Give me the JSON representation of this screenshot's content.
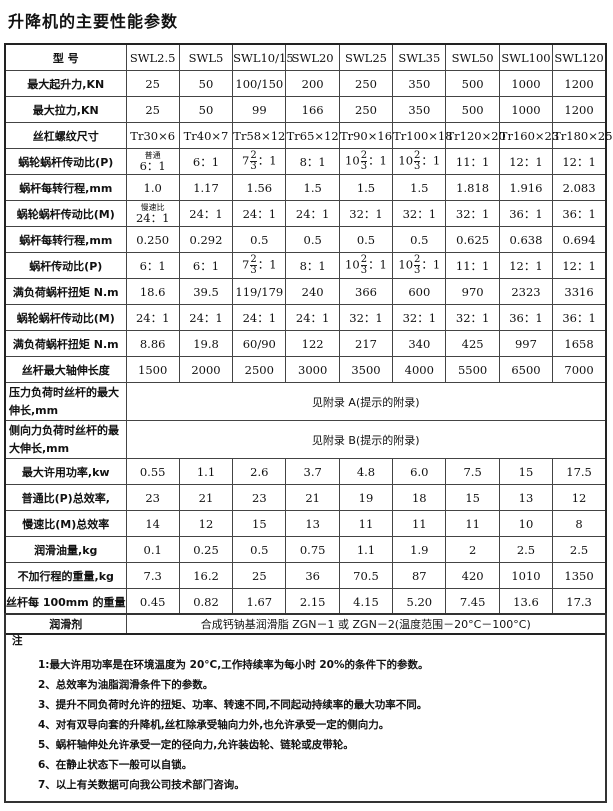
{
  "title": "升降机的主要性能参数",
  "table": {
    "header": [
      "型 号",
      "SWL2.5",
      "SWL5",
      "SWL10/15",
      "SWL20",
      "SWL25",
      "SWL35",
      "SWL50",
      "SWL100",
      "SWL120"
    ],
    "rows": [
      {
        "label": "最大起升力,KN",
        "cells": [
          "25",
          "50",
          "100/150",
          "200",
          "250",
          "350",
          "500",
          "1000",
          "1200"
        ]
      },
      {
        "label": "最大拉力,KN",
        "cells": [
          "25",
          "50",
          "99",
          "166",
          "250",
          "350",
          "500",
          "1000",
          "1200"
        ]
      },
      {
        "label": "丝杠螺纹尺寸",
        "cells": [
          "Tr30×6",
          "Tr40×7",
          "Tr58×12",
          "Tr65×12",
          "Tr90×16",
          "Tr100×18",
          "Tr120×20",
          "Tr160×23",
          "Tr180×25"
        ]
      },
      {
        "label": "蜗轮蜗杆传动比(P)",
        "cells": [
          {
            "note": "普通",
            "value": "6：1"
          },
          "6：1",
          {
            "whole": "7",
            "num": "2",
            "den": "3",
            "rest": "：1"
          },
          "8：1",
          {
            "whole": "10",
            "num": "2",
            "den": "3",
            "rest": "：1"
          },
          {
            "whole": "10",
            "num": "2",
            "den": "3",
            "rest": "：1"
          },
          "11：1",
          "12：1",
          "12：1"
        ]
      },
      {
        "label": "蜗杆每转行程,mm",
        "cells": [
          "1.0",
          "1.17",
          "1.56",
          "1.5",
          "1.5",
          "1.5",
          "1.818",
          "1.916",
          "2.083"
        ]
      },
      {
        "label": "蜗轮蜗杆传动比(M)",
        "cells": [
          {
            "note": "慢速比",
            "value": "24：1"
          },
          "24：1",
          "24：1",
          "24：1",
          "32：1",
          "32：1",
          "32：1",
          "36：1",
          "36：1"
        ]
      },
      {
        "label": "蜗杆每转行程,mm",
        "cells": [
          "0.250",
          "0.292",
          "0.5",
          "0.5",
          "0.5",
          "0.5",
          "0.625",
          "0.638",
          "0.694"
        ]
      },
      {
        "label": "蜗杆传动比(P)",
        "cells": [
          "6：1",
          "6：1",
          {
            "whole": "7",
            "num": "2",
            "den": "3",
            "rest": "：1"
          },
          "8：1",
          {
            "whole": "10",
            "num": "2",
            "den": "3",
            "rest": "：1"
          },
          {
            "whole": "10",
            "num": "2",
            "den": "3",
            "rest": "：1"
          },
          "11：1",
          "12：1",
          "12：1"
        ]
      },
      {
        "label": "满负荷蜗杆扭矩 N.m",
        "cells": [
          "18.6",
          "39.5",
          "119/179",
          "240",
          "366",
          "600",
          "970",
          "2323",
          "3316"
        ]
      },
      {
        "label": "蜗轮蜗杆传动比(M)",
        "cells": [
          "24：1",
          "24：1",
          "24：1",
          "24：1",
          "32：1",
          "32：1",
          "32：1",
          "36：1",
          "36：1"
        ]
      },
      {
        "label": "满负荷蜗杆扭矩 N.m",
        "cells": [
          "8.86",
          "19.8",
          "60/90",
          "122",
          "217",
          "340",
          "425",
          "997",
          "1658"
        ]
      },
      {
        "label": "丝杆最大轴伸长度",
        "cells": [
          "1500",
          "2000",
          "2500",
          "3000",
          "3500",
          "4000",
          "5500",
          "6500",
          "7000"
        ]
      },
      {
        "label": "压力负荷时丝杆的最大伸长,mm",
        "span": "见附录 A(提示的附录)",
        "tall": true
      },
      {
        "label": "侧向力负荷时丝杆的最大伸长,mm",
        "span": "见附录 B(提示的附录)",
        "tall": true
      },
      {
        "label": "最大许用功率,kw",
        "cells": [
          "0.55",
          "1.1",
          "2.6",
          "3.7",
          "4.8",
          "6.0",
          "7.5",
          "15",
          "17.5"
        ]
      },
      {
        "label": "普通比(P)总效率,",
        "cells": [
          "23",
          "21",
          "23",
          "21",
          "19",
          "18",
          "15",
          "13",
          "12"
        ]
      },
      {
        "label": "慢速比(M)总效率",
        "cells": [
          "14",
          "12",
          "15",
          "13",
          "11",
          "11",
          "11",
          "10",
          "8"
        ]
      },
      {
        "label": "润滑油量,kg",
        "cells": [
          "0.1",
          "0.25",
          "0.5",
          "0.75",
          "1.1",
          "1.9",
          "2",
          "2.5",
          "2.5"
        ]
      },
      {
        "label": "不加行程的重量,kg",
        "cells": [
          "7.3",
          "16.2",
          "25",
          "36",
          "70.5",
          "87",
          "420",
          "1010",
          "1350"
        ]
      },
      {
        "label": "丝杆每 100mm 的重量",
        "cells": [
          "0.45",
          "0.82",
          "1.67",
          "2.15",
          "4.15",
          "5.20",
          "7.45",
          "13.6",
          "17.3"
        ]
      },
      {
        "label": "润滑剂",
        "span": "合成钙钠基润滑脂 ZGN－1 或 ZGN－2(温度范围－20°C－100°C)",
        "short": true
      }
    ]
  },
  "notes": {
    "heading": "注",
    "items": [
      "1:最大许用功率是在环境温度为 20°C,工作持续率为每小时 20%的条件下的参数。",
      "2、总效率为油脂润滑条件下的参数。",
      "3、提升不同负荷时允许的扭矩、功率、转速不同,不同起动持续率的最大功率不同。",
      "4、对有双导向套的升降机,丝杠除承受轴向力外,也允许承受一定的侧向力。",
      "5、蜗杆轴伸处允许承受一定的径向力,允许装齿轮、链轮或皮带轮。",
      "6、在静止状态下一般可以自锁。",
      "7、以上有关数据可向我公司技术部门咨询。"
    ]
  }
}
